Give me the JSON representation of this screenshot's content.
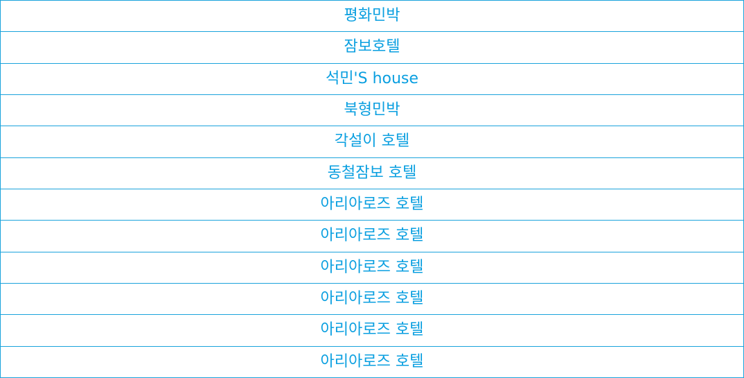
{
  "accent_color": "#0a9fe0",
  "border_color": "#1aa3dc",
  "list": {
    "items": [
      {
        "label": "평화민박"
      },
      {
        "label": "잠보호텔"
      },
      {
        "label": "석민'S house"
      },
      {
        "label": "북형민박"
      },
      {
        "label": "각설이 호텔"
      },
      {
        "label": "동철잠보 호텔"
      },
      {
        "label": "아리아로즈 호텔"
      },
      {
        "label": "아리아로즈 호텔"
      },
      {
        "label": "아리아로즈 호텔"
      },
      {
        "label": "아리아로즈 호텔"
      },
      {
        "label": "아리아로즈 호텔"
      },
      {
        "label": "아리아로즈 호텔"
      }
    ]
  }
}
